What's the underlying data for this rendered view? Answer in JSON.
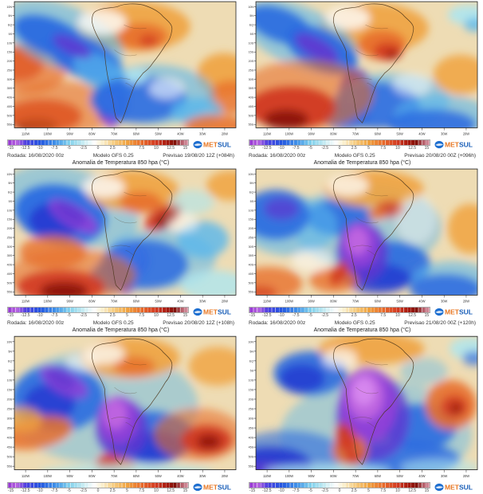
{
  "map_title": "Anomalia de Temperatura 850 hpa (°C)",
  "model_bg": "#eedcb4",
  "colorbar": {
    "unit": "°C",
    "ticks": [
      "-15",
      "-12.5",
      "-10",
      "-7.5",
      "-5",
      "-2.5",
      "0",
      "2.5",
      "5",
      "7.5",
      "10",
      "12.5",
      "15"
    ]
  },
  "logo": {
    "met": "MET",
    "sul": "SUL",
    "met_color": "#e87722",
    "sul_color": "#1a5fb8",
    "globe_color": "#1e6fd0"
  },
  "axes": {
    "lons": [
      "110W",
      "100W",
      "90W",
      "80W",
      "70W",
      "60W",
      "50W",
      "40W",
      "30W",
      "20W"
    ],
    "lats": [
      "10N",
      "5N",
      "EQ",
      "5S",
      "10S",
      "15S",
      "20S",
      "25S",
      "30S",
      "35S",
      "40S",
      "45S",
      "50S",
      "55S"
    ]
  },
  "colors": {
    "O": "#f0a340",
    "O2": "#e8702c",
    "R": "#d23a22",
    "DR": "#8a1208",
    "C": "#aee6ef",
    "LB": "#59b6ec",
    "B": "#2a6ae0",
    "DB": "#2336d0",
    "V": "#6038d0",
    "P": "#9040d8",
    "M": "#c066e0",
    "M2": "#d88af0",
    "W": "#ffffff"
  },
  "panels": [
    {
      "rodada": "Rodada: 16/08/2020 00z",
      "modelo": "Modelo GFS 0.25",
      "previsao": "Previsao 19/08/20 12Z (+084h)",
      "blobs": [
        [
          150,
          30,
          70,
          30,
          0,
          "O",
          0.9
        ],
        [
          160,
          42,
          32,
          16,
          0,
          "O2",
          0.9
        ],
        [
          168,
          47,
          12,
          7,
          0,
          "R",
          0.8
        ],
        [
          262,
          88,
          34,
          26,
          0,
          "O",
          0.9
        ],
        [
          270,
          115,
          28,
          20,
          0,
          "O2",
          0.8
        ],
        [
          6,
          75,
          30,
          20,
          0,
          "R",
          0.9
        ],
        [
          18,
          80,
          48,
          30,
          0,
          "O2",
          0.7
        ],
        [
          36,
          138,
          48,
          20,
          0,
          "R",
          0.95
        ],
        [
          28,
          150,
          26,
          10,
          0,
          "DR",
          0.9
        ],
        [
          60,
          128,
          75,
          32,
          0,
          "O2",
          0.6
        ],
        [
          60,
          42,
          80,
          38,
          20,
          "LB",
          0.6
        ],
        [
          45,
          42,
          48,
          22,
          20,
          "B",
          0.95
        ],
        [
          88,
          68,
          52,
          24,
          25,
          "B",
          0.95
        ],
        [
          110,
          88,
          40,
          20,
          30,
          "LB",
          0.7
        ],
        [
          72,
          54,
          26,
          10,
          25,
          "V",
          0.85
        ],
        [
          122,
          122,
          20,
          26,
          0,
          "DB",
          0.95
        ],
        [
          119,
          128,
          12,
          18,
          0,
          "V",
          0.9
        ],
        [
          121,
          143,
          7,
          9,
          0,
          "P",
          0.9
        ],
        [
          175,
          112,
          75,
          36,
          0,
          "LB",
          0.6
        ],
        [
          155,
          118,
          60,
          28,
          0,
          "B",
          0.85
        ],
        [
          152,
          90,
          14,
          9,
          0,
          "C",
          0.9
        ],
        [
          228,
          132,
          32,
          16,
          0,
          "LB",
          0.8
        ],
        [
          252,
          150,
          40,
          14,
          0,
          "O2",
          0.85
        ],
        [
          110,
          25,
          30,
          15,
          0,
          "W",
          0.8
        ],
        [
          190,
          105,
          22,
          12,
          0,
          "W",
          0.6
        ]
      ]
    },
    {
      "rodada": "Rodada: 16/08/2020 00z",
      "modelo": "Modelo GFS 0.25",
      "previsao": "Previsao 20/08/20 00Z (+096h)",
      "blobs": [
        [
          148,
          32,
          68,
          30,
          0,
          "O",
          0.9
        ],
        [
          158,
          52,
          30,
          18,
          0,
          "O2",
          0.95
        ],
        [
          165,
          60,
          18,
          11,
          0,
          "R",
          0.9
        ],
        [
          170,
          64,
          8,
          5,
          0,
          "DR",
          0.7
        ],
        [
          55,
          42,
          78,
          36,
          22,
          "LB",
          0.6
        ],
        [
          30,
          28,
          42,
          20,
          20,
          "B",
          0.9
        ],
        [
          82,
          58,
          48,
          24,
          25,
          "B",
          0.95
        ],
        [
          76,
          56,
          30,
          12,
          28,
          "V",
          0.9
        ],
        [
          126,
          112,
          22,
          30,
          0,
          "DB",
          0.95
        ],
        [
          122,
          114,
          14,
          22,
          0,
          "V",
          0.95
        ],
        [
          120,
          120,
          8,
          13,
          0,
          "P",
          0.95
        ],
        [
          172,
          118,
          70,
          32,
          0,
          "LB",
          0.6
        ],
        [
          150,
          125,
          55,
          28,
          0,
          "B",
          0.85
        ],
        [
          112,
          138,
          30,
          16,
          0,
          "B",
          0.9
        ],
        [
          62,
          112,
          85,
          42,
          0,
          "O2",
          0.6
        ],
        [
          45,
          128,
          55,
          26,
          0,
          "R",
          0.95
        ],
        [
          38,
          142,
          28,
          12,
          0,
          "DR",
          0.9
        ],
        [
          232,
          138,
          60,
          26,
          0,
          "LB",
          0.6
        ],
        [
          220,
          148,
          55,
          18,
          0,
          "B",
          0.85
        ],
        [
          266,
          16,
          26,
          12,
          0,
          "C",
          0.9
        ],
        [
          274,
          28,
          14,
          8,
          0,
          "LB",
          0.8
        ],
        [
          256,
          88,
          34,
          24,
          0,
          "O",
          0.85
        ],
        [
          115,
          20,
          28,
          14,
          0,
          "W",
          0.8
        ],
        [
          195,
          100,
          24,
          14,
          0,
          "W",
          0.5
        ]
      ]
    },
    {
      "title_visible": true,
      "rodada": "Rodada: 16/08/2020 00z",
      "modelo": "Modelo GFS 0.25",
      "previsao": "Previsao 20/08/20 12Z (+108h)",
      "blobs": [
        [
          70,
          45,
          88,
          46,
          15,
          "LB",
          0.55
        ],
        [
          58,
          55,
          58,
          36,
          10,
          "B",
          0.95
        ],
        [
          52,
          62,
          34,
          22,
          0,
          "DB",
          0.85
        ],
        [
          74,
          57,
          34,
          13,
          30,
          "P",
          0.9
        ],
        [
          70,
          53,
          22,
          9,
          30,
          "V",
          0.85
        ],
        [
          142,
          110,
          27,
          23,
          0,
          "P",
          0.9
        ],
        [
          140,
          104,
          20,
          15,
          0,
          "M",
          0.95
        ],
        [
          138,
          132,
          16,
          18,
          0,
          "V",
          0.9
        ],
        [
          182,
          108,
          70,
          36,
          0,
          "LB",
          0.55
        ],
        [
          162,
          115,
          55,
          30,
          0,
          "B",
          0.85
        ],
        [
          120,
          130,
          25,
          18,
          0,
          "B",
          0.85
        ],
        [
          148,
          26,
          58,
          24,
          0,
          "O",
          0.9
        ],
        [
          158,
          40,
          26,
          13,
          0,
          "O2",
          0.9
        ],
        [
          186,
          58,
          26,
          13,
          -30,
          "R",
          0.9
        ],
        [
          190,
          61,
          15,
          8,
          -30,
          "DR",
          0.85
        ],
        [
          48,
          100,
          42,
          20,
          0,
          "O2",
          0.8
        ],
        [
          72,
          128,
          80,
          32,
          0,
          "O2",
          0.6
        ],
        [
          58,
          142,
          55,
          20,
          0,
          "R",
          0.9
        ],
        [
          62,
          147,
          30,
          11,
          0,
          "DR",
          0.9
        ],
        [
          236,
          85,
          32,
          22,
          0,
          "LB",
          0.8
        ],
        [
          270,
          20,
          30,
          18,
          0,
          "O",
          0.85
        ],
        [
          250,
          140,
          42,
          18,
          0,
          "C",
          0.8
        ],
        [
          222,
          40,
          28,
          15,
          0,
          "C",
          0.6
        ],
        [
          112,
          22,
          26,
          13,
          0,
          "W",
          0.8
        ],
        [
          210,
          65,
          20,
          12,
          0,
          "W",
          0.5
        ]
      ]
    },
    {
      "title_visible": true,
      "rodada": "Rodada: 16/08/2020 00z",
      "modelo": "Modelo GFS 0.25",
      "previsao": "Previsao 21/08/20 00Z (+120h)",
      "blobs": [
        [
          140,
          70,
          92,
          52,
          0,
          "LB",
          0.5
        ],
        [
          103,
          58,
          40,
          22,
          0,
          "B",
          0.9
        ],
        [
          168,
          115,
          50,
          28,
          0,
          "B",
          0.9
        ],
        [
          152,
          132,
          42,
          18,
          0,
          "DB",
          0.8
        ],
        [
          133,
          100,
          32,
          36,
          0,
          "V",
          0.85
        ],
        [
          130,
          92,
          23,
          27,
          0,
          "P",
          0.95
        ],
        [
          127,
          87,
          14,
          17,
          0,
          "M",
          0.95
        ],
        [
          42,
          68,
          60,
          36,
          0,
          "LB",
          0.6
        ],
        [
          25,
          55,
          42,
          30,
          0,
          "B",
          0.9
        ],
        [
          32,
          48,
          22,
          13,
          0,
          "V",
          0.7
        ],
        [
          148,
          24,
          62,
          22,
          0,
          "O",
          0.9
        ],
        [
          168,
          48,
          18,
          10,
          0,
          "R",
          0.8
        ],
        [
          152,
          54,
          12,
          7,
          0,
          "O2",
          0.85
        ],
        [
          97,
          134,
          30,
          15,
          0,
          "O2",
          0.8
        ],
        [
          104,
          126,
          16,
          9,
          -55,
          "R",
          0.9
        ],
        [
          16,
          138,
          42,
          20,
          0,
          "O2",
          0.8
        ],
        [
          6,
          150,
          20,
          9,
          0,
          "R",
          0.7
        ],
        [
          245,
          135,
          50,
          24,
          0,
          "LB",
          0.6
        ],
        [
          237,
          145,
          45,
          18,
          0,
          "B",
          0.85
        ],
        [
          268,
          72,
          28,
          30,
          0,
          "O",
          0.85
        ],
        [
          115,
          20,
          26,
          13,
          0,
          "W",
          0.75
        ],
        [
          70,
          110,
          25,
          14,
          0,
          "W",
          0.5
        ],
        [
          200,
          60,
          25,
          30,
          0,
          "W",
          0.4
        ]
      ]
    },
    {
      "title_visible": true,
      "blobs": [
        [
          110,
          80,
          120,
          65,
          0,
          "LB",
          0.45
        ],
        [
          55,
          70,
          58,
          38,
          0,
          "B",
          0.9
        ],
        [
          44,
          76,
          32,
          22,
          0,
          "DB",
          0.8
        ],
        [
          170,
          115,
          55,
          30,
          0,
          "B",
          0.9
        ],
        [
          178,
          126,
          36,
          18,
          0,
          "DB",
          0.8
        ],
        [
          62,
          52,
          32,
          13,
          25,
          "P",
          0.85
        ],
        [
          58,
          48,
          20,
          8,
          25,
          "V",
          0.8
        ],
        [
          134,
          105,
          33,
          34,
          0,
          "V",
          0.85
        ],
        [
          130,
          95,
          25,
          27,
          0,
          "P",
          0.95
        ],
        [
          126,
          89,
          15,
          17,
          0,
          "M",
          0.95
        ],
        [
          145,
          24,
          62,
          23,
          0,
          "O",
          0.9
        ],
        [
          150,
          34,
          26,
          11,
          0,
          "O2",
          0.85
        ],
        [
          28,
          110,
          45,
          18,
          -10,
          "O2",
          0.85
        ],
        [
          10,
          95,
          25,
          14,
          0,
          "O",
          0.8
        ],
        [
          230,
          112,
          56,
          30,
          0,
          "O2",
          0.6
        ],
        [
          240,
          118,
          32,
          17,
          0,
          "R",
          0.95
        ],
        [
          243,
          120,
          15,
          8,
          0,
          "DR",
          0.85
        ],
        [
          126,
          148,
          26,
          10,
          0,
          "O2",
          0.8
        ],
        [
          118,
          142,
          14,
          8,
          0,
          "R",
          0.9
        ],
        [
          140,
          156,
          110,
          10,
          0,
          "C",
          0.8
        ],
        [
          254,
          34,
          36,
          22,
          0,
          "O",
          0.8
        ],
        [
          112,
          20,
          26,
          12,
          0,
          "W",
          0.75
        ],
        [
          85,
          30,
          20,
          10,
          0,
          "W",
          0.5
        ]
      ]
    },
    {
      "title_visible": true,
      "blobs": [
        [
          150,
          112,
          120,
          62,
          0,
          "LB",
          0.45
        ],
        [
          68,
          42,
          46,
          25,
          0,
          "B",
          0.9
        ],
        [
          58,
          48,
          28,
          16,
          0,
          "DB",
          0.8
        ],
        [
          205,
          103,
          46,
          26,
          0,
          "B",
          0.9
        ],
        [
          185,
          140,
          70,
          20,
          0,
          "B",
          0.85
        ],
        [
          40,
          135,
          70,
          28,
          0,
          "B",
          0.6
        ],
        [
          18,
          148,
          52,
          22,
          0,
          "DB",
          0.9
        ],
        [
          8,
          154,
          26,
          10,
          0,
          "V",
          0.8
        ],
        [
          146,
          92,
          46,
          50,
          0,
          "V",
          0.8
        ],
        [
          140,
          78,
          36,
          42,
          0,
          "P",
          0.95
        ],
        [
          137,
          68,
          23,
          27,
          0,
          "M",
          0.95
        ],
        [
          135,
          63,
          14,
          16,
          0,
          "M2",
          0.9
        ],
        [
          145,
          14,
          66,
          18,
          0,
          "O",
          0.9
        ],
        [
          244,
          78,
          32,
          28,
          0,
          "O2",
          0.9
        ],
        [
          248,
          80,
          17,
          13,
          0,
          "R",
          0.85
        ],
        [
          250,
          82,
          8,
          6,
          0,
          "DR",
          0.7
        ],
        [
          118,
          130,
          22,
          18,
          0,
          "O2",
          0.85
        ],
        [
          112,
          116,
          12,
          18,
          -20,
          "R",
          0.9
        ],
        [
          121,
          140,
          10,
          8,
          0,
          "R",
          0.85
        ],
        [
          268,
          14,
          26,
          13,
          0,
          "C",
          0.85
        ],
        [
          273,
          25,
          15,
          8,
          0,
          "B",
          0.7
        ],
        [
          90,
          154,
          80,
          8,
          0,
          "C",
          0.8
        ],
        [
          230,
          150,
          50,
          10,
          0,
          "C",
          0.6
        ],
        [
          105,
          25,
          22,
          11,
          0,
          "W",
          0.7
        ],
        [
          210,
          40,
          30,
          16,
          0,
          "LB",
          0.4
        ]
      ]
    }
  ]
}
